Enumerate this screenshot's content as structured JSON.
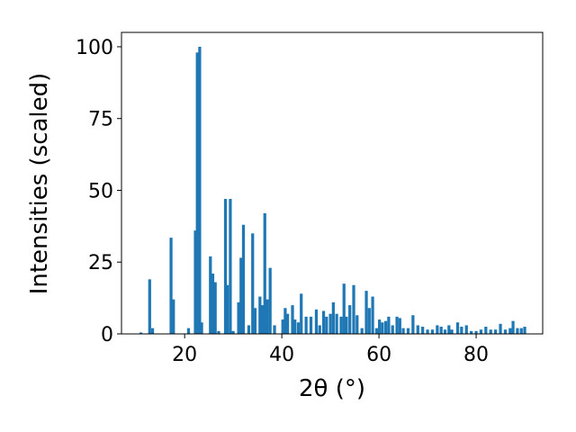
{
  "chart_data": {
    "type": "bar",
    "xlabel": "2θ (°)",
    "ylabel": "Intensities (scaled)",
    "color": "#1f77b4",
    "x": [
      11,
      12.8,
      13.4,
      17.2,
      17.7,
      20.8,
      22.2,
      22.6,
      23.1,
      23.5,
      25.3,
      25.8,
      26.3,
      27,
      28.4,
      28.8,
      29.4,
      30,
      31.1,
      31.6,
      32.1,
      33.2,
      34.0,
      34.5,
      35.5,
      36,
      36.5,
      37,
      37.6,
      38.5,
      40.2,
      40.7,
      41.2,
      42.2,
      42.7,
      43.4,
      44.0,
      45.0,
      46.0,
      47.1,
      47.8,
      48.6,
      49.2,
      50,
      50.6,
      51.3,
      52.2,
      52.8,
      53.3,
      54,
      54.8,
      55.5,
      56.5,
      57.4,
      58,
      58.7,
      59.5,
      60.1,
      60.7,
      61.4,
      62,
      62.8,
      63.7,
      64.3,
      65,
      66,
      67,
      68,
      69,
      70,
      71,
      72,
      72.8,
      73.6,
      74.4,
      75,
      76.2,
      77,
      78,
      79,
      80,
      81,
      82,
      83,
      84,
      85,
      86,
      87,
      87.6,
      88.5,
      89.3,
      90
    ],
    "values": [
      0.5,
      19,
      2,
      33.5,
      12,
      2,
      36,
      98,
      100,
      4,
      27,
      21,
      18,
      1,
      47,
      17,
      47,
      1,
      11,
      26.5,
      38,
      3,
      35,
      9,
      13,
      10,
      42,
      12,
      23,
      3,
      5,
      9,
      7,
      10,
      5,
      4,
      14,
      6,
      6,
      8.5,
      3,
      8,
      6,
      7,
      11,
      7,
      6,
      17.5,
      6,
      10,
      17,
      6.5,
      2,
      15,
      9,
      13,
      2,
      5,
      4,
      4.5,
      6,
      3,
      6,
      5.5,
      2,
      2,
      6.5,
      3,
      2.5,
      1.5,
      1.5,
      3,
      2.5,
      1.5,
      3,
      1.5,
      4,
      2.5,
      3,
      1,
      1,
      1.5,
      2.5,
      1.5,
      1.5,
      3.5,
      1.5,
      2,
      4.5,
      2,
      2,
      2.5
    ],
    "xlim": [
      7,
      93.7
    ],
    "ylim": [
      0,
      105
    ],
    "xticks": [
      20,
      40,
      60,
      80
    ],
    "yticks": [
      0,
      25,
      50,
      75,
      100
    ]
  }
}
